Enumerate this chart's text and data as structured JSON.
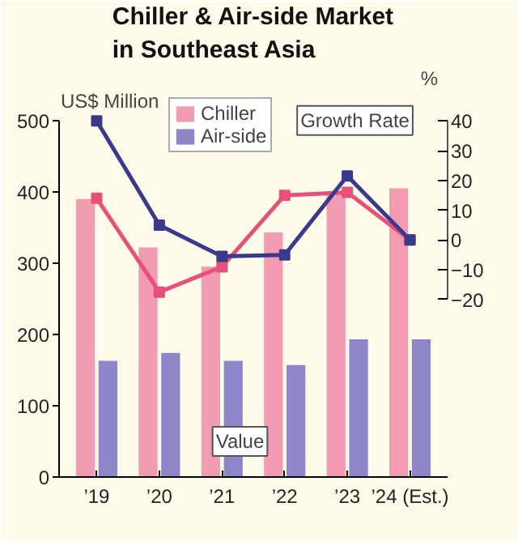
{
  "chart_data": {
    "type": "bar",
    "title": "Chiller & Air-side Market in Southeast Asia",
    "ylabel": "US$ Million",
    "y2label": "%",
    "categories": [
      "’19",
      "’20",
      "’21",
      "’22",
      "’23",
      "’24 (Est.)"
    ],
    "series": [
      {
        "name": "Chiller",
        "color": "#f29bb2",
        "values": [
          390,
          322,
          295,
          343,
          400,
          405
        ]
      },
      {
        "name": "Air-side",
        "color": "#8e86c8",
        "values": [
          163,
          174,
          163,
          157,
          193,
          193
        ]
      },
      {
        "type": "line",
        "axis": "y2",
        "color": "#e8507a",
        "values": [
          14,
          -17.5,
          -9,
          15,
          16,
          0
        ]
      },
      {
        "type": "line",
        "axis": "y2",
        "color": "#3a3a8c",
        "values": [
          40,
          5,
          -5.5,
          -5,
          21.5,
          0
        ]
      }
    ],
    "ylim": [
      0,
      543
    ],
    "yticks": [
      0,
      100,
      200,
      300,
      400,
      500
    ],
    "y2lim": [
      -79.6,
      50.4
    ],
    "y2ticks": [
      -20,
      -10,
      0,
      10,
      20,
      30,
      40
    ],
    "annotations": [
      "Growth Rate",
      "Value"
    ],
    "marker": "square",
    "legend": "top"
  }
}
